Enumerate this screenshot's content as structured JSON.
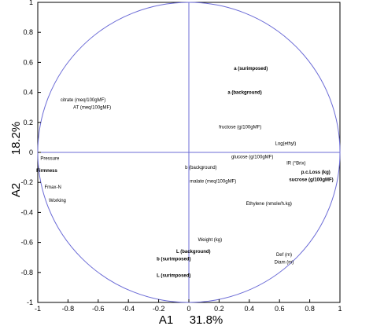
{
  "chart_data": {
    "type": "scatter",
    "subtype": "correlation-circle",
    "title": "",
    "xlabel": {
      "name": "A1",
      "value": "31.8%"
    },
    "ylabel": {
      "name": "A2",
      "value": "18.2%"
    },
    "xlim": [
      -1,
      1
    ],
    "ylim": [
      -1,
      1
    ],
    "xticks": [
      "-1",
      "-0.8",
      "-0.6",
      "-0.4",
      "-0.2",
      "0",
      "0.2",
      "0.4",
      "0.6",
      "0.8",
      "1"
    ],
    "yticks": [
      "-1",
      "-0.8",
      "-0.6",
      "-0.4",
      "-0.2",
      "0",
      "0.2",
      "0.4",
      "0.6",
      "0.8",
      "1"
    ],
    "grid": false,
    "colors": {
      "circle": "#6b6bd6",
      "axes": "#6b6bd6",
      "frame": "#000000",
      "text": "#000000"
    },
    "variables": [
      {
        "label": "a (surimposed)",
        "x": 0.41,
        "y": 0.56,
        "bold": true
      },
      {
        "label": "a (background)",
        "x": 0.37,
        "y": 0.4,
        "bold": true
      },
      {
        "label": "citrate (meq/100gMF)",
        "x": -0.7,
        "y": 0.35,
        "bold": false
      },
      {
        "label": "AT (meq/100gMF)",
        "x": -0.64,
        "y": 0.3,
        "bold": false
      },
      {
        "label": "fructose (g/100gMF)",
        "x": 0.34,
        "y": 0.17,
        "bold": false
      },
      {
        "label": "Log(ethyl)",
        "x": 0.64,
        "y": 0.06,
        "bold": false
      },
      {
        "label": "glucose (g/100gMF)",
        "x": 0.42,
        "y": -0.03,
        "bold": false
      },
      {
        "label": "IR (°Brix)",
        "x": 0.71,
        "y": -0.07,
        "bold": false
      },
      {
        "label": "p.c.Loss (kg)",
        "x": 0.84,
        "y": -0.13,
        "bold": true
      },
      {
        "label": "sucrose (g/100gMF)",
        "x": 0.81,
        "y": -0.18,
        "bold": true
      },
      {
        "label": "Pressure",
        "x": -0.92,
        "y": -0.04,
        "bold": false
      },
      {
        "label": "Firmness",
        "x": -0.94,
        "y": -0.12,
        "bold": true
      },
      {
        "label": "Fmax-N",
        "x": -0.9,
        "y": -0.23,
        "bold": false
      },
      {
        "label": "Working",
        "x": -0.87,
        "y": -0.32,
        "bold": false
      },
      {
        "label": "b (background)",
        "x": 0.08,
        "y": -0.1,
        "bold": false
      },
      {
        "label": "malate (meq/100gMF)",
        "x": 0.16,
        "y": -0.19,
        "bold": false
      },
      {
        "label": "Ethylene (nmole/h.kg)",
        "x": 0.53,
        "y": -0.34,
        "bold": false
      },
      {
        "label": "Weight (kg)",
        "x": 0.14,
        "y": -0.58,
        "bold": false
      },
      {
        "label": "L (background)",
        "x": 0.03,
        "y": -0.66,
        "bold": true
      },
      {
        "label": "b (surimposed)",
        "x": -0.1,
        "y": -0.71,
        "bold": true
      },
      {
        "label": "Def (m)",
        "x": 0.63,
        "y": -0.68,
        "bold": false
      },
      {
        "label": "Diam (m)",
        "x": 0.63,
        "y": -0.73,
        "bold": false
      },
      {
        "label": "L (surimposed)",
        "x": -0.1,
        "y": -0.82,
        "bold": true
      }
    ]
  }
}
